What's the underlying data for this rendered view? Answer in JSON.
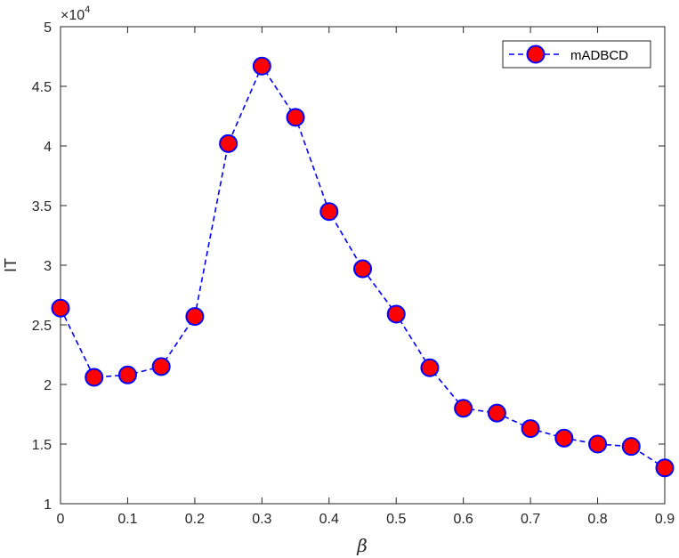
{
  "chart_data": {
    "type": "line",
    "xlabel": "β",
    "ylabel": "IT",
    "y_multiplier": "×10",
    "y_multiplier_exponent": "4",
    "xlim": [
      0,
      0.9
    ],
    "ylim": [
      1,
      5
    ],
    "x_ticks": [
      0,
      0.1,
      0.2,
      0.3,
      0.4,
      0.5,
      0.6,
      0.7,
      0.8,
      0.9
    ],
    "x_tick_labels": [
      "0",
      "0.1",
      "0.2",
      "0.3",
      "0.4",
      "0.5",
      "0.6",
      "0.7",
      "0.8",
      "0.9"
    ],
    "y_ticks": [
      1,
      1.5,
      2,
      2.5,
      3,
      3.5,
      4,
      4.5,
      5
    ],
    "y_tick_labels": [
      "1",
      "1.5",
      "2",
      "2.5",
      "3",
      "3.5",
      "4",
      "4.5",
      "5"
    ],
    "grid": false,
    "legend_position": "top-right",
    "x": [
      0,
      0.05,
      0.1,
      0.15,
      0.2,
      0.25,
      0.3,
      0.35,
      0.4,
      0.45,
      0.5,
      0.55,
      0.6,
      0.65,
      0.7,
      0.75,
      0.8,
      0.85,
      0.9
    ],
    "series": [
      {
        "name": "mADBCD",
        "values": [
          2.64,
          2.06,
          2.08,
          2.15,
          2.57,
          4.02,
          4.67,
          4.24,
          3.45,
          2.97,
          2.59,
          2.14,
          1.8,
          1.76,
          1.63,
          1.55,
          1.5,
          1.48,
          1.3
        ],
        "line_color": "#0000ff",
        "line_style": "dashed",
        "marker": "circle",
        "marker_fill": "#ff0000",
        "marker_edge": "#0000ff"
      }
    ]
  }
}
